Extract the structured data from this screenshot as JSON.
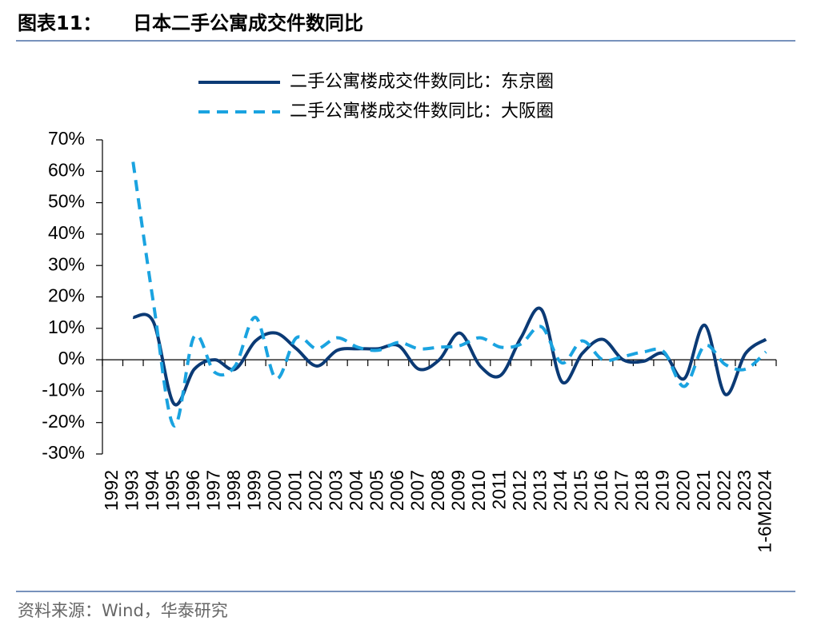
{
  "chart_data": {
    "type": "line",
    "label": "图表11：",
    "title": "日本二手公寓成交件数同比",
    "source": "资料来源：Wind，华泰研究",
    "categories": [
      "1992",
      "1993",
      "1994",
      "1995",
      "1996",
      "1997",
      "1998",
      "1999",
      "2000",
      "2001",
      "2002",
      "2003",
      "2004",
      "2005",
      "2006",
      "2007",
      "2008",
      "2009",
      "2010",
      "2011",
      "2012",
      "2013",
      "2014",
      "2015",
      "2016",
      "2017",
      "2018",
      "2019",
      "2020",
      "2021",
      "2022",
      "2023",
      "1-6M2024"
    ],
    "series": [
      {
        "name": "二手公寓楼成交件数同比：东京圈",
        "color": "#0b3a75",
        "dash": false,
        "values": [
          null,
          13.5,
          12,
          -14,
          -3,
          0,
          -3,
          6,
          8.5,
          3.5,
          -2,
          3,
          3.5,
          3.5,
          4.5,
          -3,
          0,
          8.5,
          -2,
          -5,
          7,
          16,
          -7,
          2,
          6.5,
          0,
          -0.5,
          2,
          -6,
          11,
          -11,
          2,
          6.5
        ]
      },
      {
        "name": "二手公寓楼成交件数同比：大阪圈",
        "color": "#1aa3e0",
        "dash": true,
        "values": [
          null,
          63,
          18,
          -21,
          7.5,
          -4,
          -2,
          13.5,
          -6,
          7,
          3.5,
          7,
          4,
          3,
          5.5,
          3.5,
          4,
          4.5,
          7,
          4,
          5,
          10.5,
          -1,
          6,
          0,
          1,
          2.5,
          2.5,
          -8.5,
          4.5,
          -1.5,
          -3,
          2.5
        ]
      }
    ],
    "ylim": [
      -30,
      70
    ],
    "yticks": [
      {
        "value": -30,
        "label": "-30%"
      },
      {
        "value": -20,
        "label": "-20%"
      },
      {
        "value": -10,
        "label": "-10%"
      },
      {
        "value": 0,
        "label": "0%"
      },
      {
        "value": 10,
        "label": "10%"
      },
      {
        "value": 20,
        "label": "20%"
      },
      {
        "value": 30,
        "label": "30%"
      },
      {
        "value": 40,
        "label": "40%"
      },
      {
        "value": 50,
        "label": "50%"
      },
      {
        "value": 60,
        "label": "60%"
      },
      {
        "value": 70,
        "label": "70%"
      }
    ],
    "legend": "top"
  }
}
